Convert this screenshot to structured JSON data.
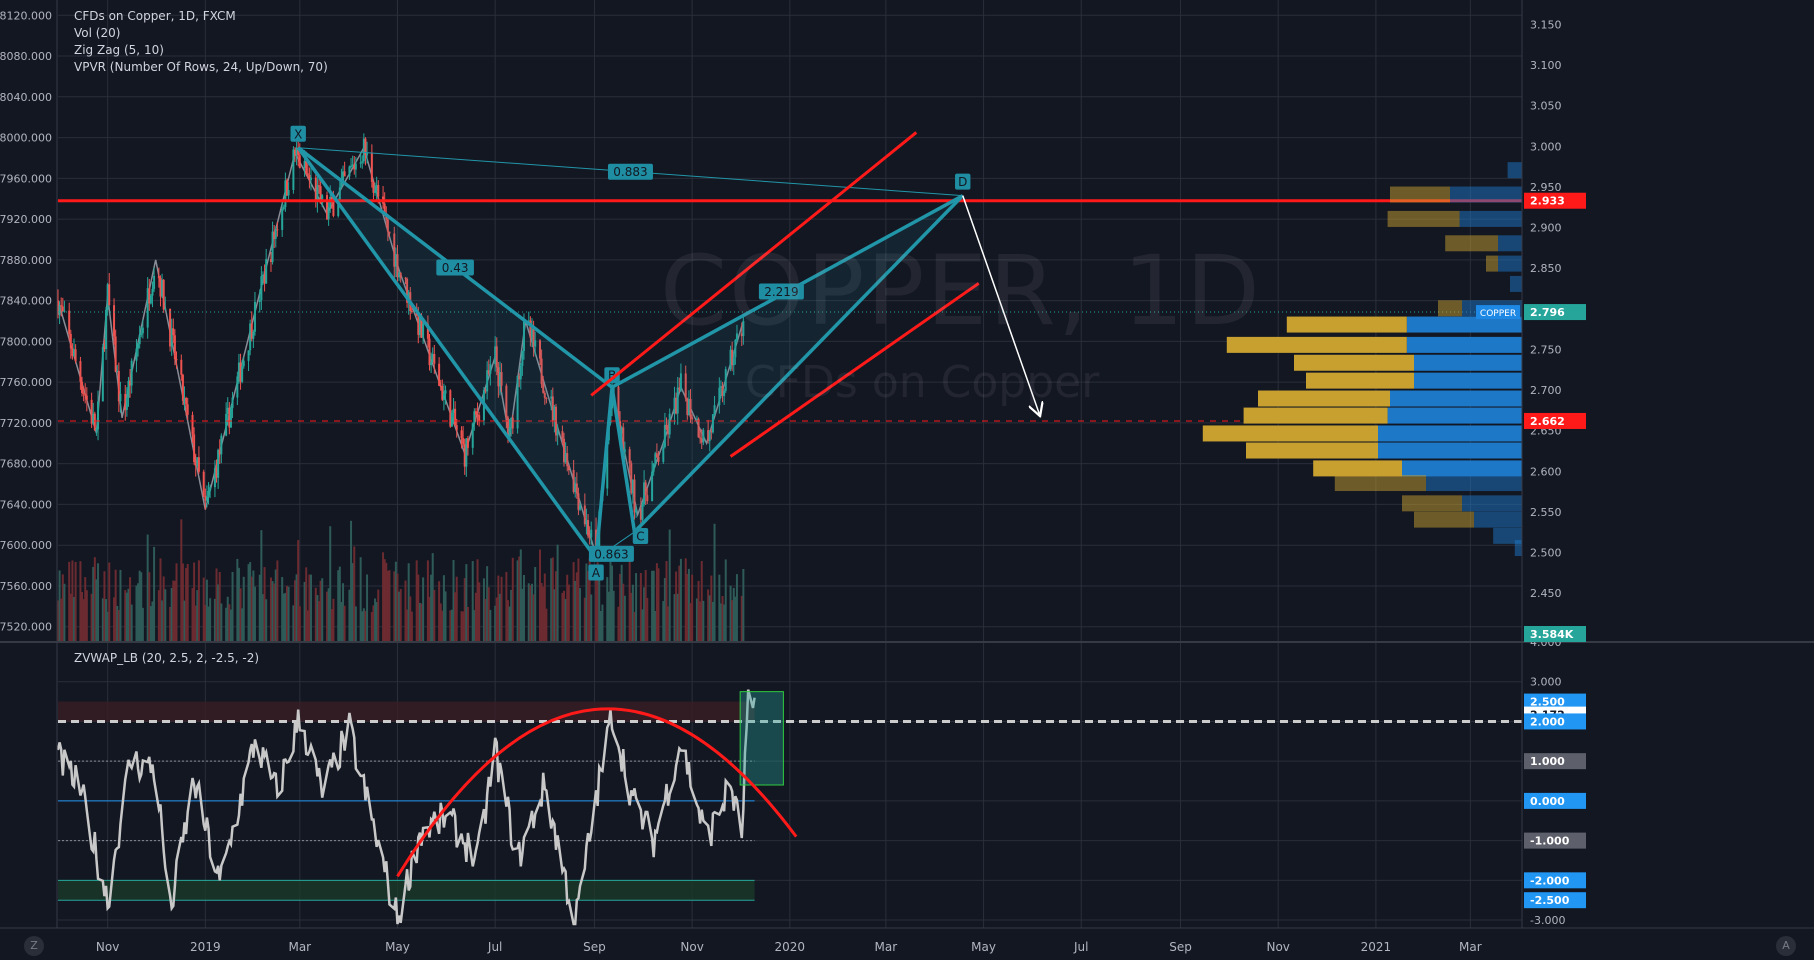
{
  "legend": {
    "symbol_line": "CFDs on Copper, 1D, FXCM",
    "vol": "Vol (20)",
    "zigzag": "Zig Zag (5, 10)",
    "vpvr": "VPVR (Number Of Rows, 24, Up/Down, 70)"
  },
  "watermark": {
    "title": "COPPER, 1D",
    "subtitle": "CFDs on Copper"
  },
  "oscillator": {
    "title": "ZVWAP_LB (20, 2.5, 2, -2.5, -2)"
  },
  "corner_buttons": {
    "left": "Z",
    "right": "A"
  },
  "colors": {
    "background": "#131722",
    "grid": "#2a2e39",
    "pattern": "#2196a8",
    "pattern_fill": "#1f8ea3",
    "trend": "#ff1a1a",
    "zigzag": "#8a8d96",
    "candle_up": "#26a69a",
    "candle_down": "#ef5350",
    "volume_up": "#2e5a57",
    "volume_down": "#6b2b30",
    "vpvr_up": "#c8a030",
    "vpvr_down": "#1e78c8",
    "osc_line": "#c8c8c8",
    "arrow": "#ffffff"
  },
  "chart_data": [
    {
      "type": "candlestick",
      "title": "CFDs on Copper, 1D, FXCM",
      "x_ticks": [
        "Nov",
        "2019",
        "Mar",
        "May",
        "Jul",
        "Sep",
        "Nov",
        "2020",
        "Mar",
        "May",
        "Jul",
        "Sep",
        "Nov",
        "2021",
        "Mar"
      ],
      "left_axis": {
        "ticks": [
          "8120.000",
          "8080.000",
          "8040.000",
          "8000.000",
          "7960.000",
          "7920.000",
          "7880.000",
          "7840.000",
          "7800.000",
          "7760.000",
          "7720.000",
          "7680.000",
          "7640.000",
          "7600.000",
          "7560.000",
          "7520.000"
        ],
        "range": [
          7505,
          8135
        ]
      },
      "right_axis": {
        "ticks": [
          "3.150",
          "3.100",
          "3.050",
          "3.000",
          "2.950",
          "2.900",
          "2.850",
          "2.800",
          "2.750",
          "2.700",
          "2.650",
          "2.600",
          "2.550",
          "2.500",
          "2.450",
          "2.400"
        ],
        "range": [
          2.39,
          3.18
        ]
      },
      "price_labels": [
        {
          "value": 2.933,
          "text": "2.933",
          "color": "#ff1a1a"
        },
        {
          "value": 2.796,
          "text": "2.796",
          "color": "#26a69a"
        },
        {
          "value": 2.662,
          "text": "2.662",
          "color": "#ff1a1a"
        }
      ],
      "volume_label": "3.584K",
      "symbol_tag": "COPPER",
      "horizontal_lines": [
        {
          "price": 2.933,
          "style": "solid",
          "color": "#ff1a1a"
        },
        {
          "price": 2.796,
          "style": "dotted",
          "color": "#26a69a"
        },
        {
          "price": 2.662,
          "style": "dashed",
          "color": "#ff1a1a"
        }
      ],
      "zigzag": [
        {
          "date": "2018-10-01",
          "price": 7840
        },
        {
          "date": "2018-10-25",
          "price": 7710
        },
        {
          "date": "2018-11-01",
          "price": 7845
        },
        {
          "date": "2018-11-10",
          "price": 7725
        },
        {
          "date": "2018-12-01",
          "price": 7880
        },
        {
          "date": "2019-01-01",
          "price": 7635
        },
        {
          "date": "2019-02-26",
          "price": 7985
        },
        {
          "date": "2019-03-18",
          "price": 7925
        },
        {
          "date": "2019-04-10",
          "price": 7990
        },
        {
          "date": "2019-05-02",
          "price": 7870
        },
        {
          "date": "2019-06-12",
          "price": 7690
        },
        {
          "date": "2019-07-01",
          "price": 7785
        },
        {
          "date": "2019-07-10",
          "price": 7705
        },
        {
          "date": "2019-07-20",
          "price": 7820
        },
        {
          "date": "2019-09-02",
          "price": 7590
        },
        {
          "date": "2019-09-12",
          "price": 7750
        },
        {
          "date": "2019-09-28",
          "price": 7630
        },
        {
          "date": "2019-10-15",
          "price": 7705
        },
        {
          "date": "2019-10-25",
          "price": 7755
        },
        {
          "date": "2019-11-10",
          "price": 7700
        },
        {
          "date": "2019-12-03",
          "price": 7820
        }
      ],
      "pattern_points": [
        {
          "label": "X",
          "date": "2019-02-28",
          "price": 7990
        },
        {
          "label": "A",
          "date": "2019-09-02",
          "price": 7587
        },
        {
          "label": "B",
          "date": "2019-09-12",
          "price": 7755
        },
        {
          "label": "C",
          "date": "2019-09-26",
          "price": 7613
        },
        {
          "label": "D",
          "date": "2020-04-18",
          "price": 7943
        }
      ],
      "pattern_ratios": [
        {
          "text": "0.883",
          "between": "X-D"
        },
        {
          "text": "0.43",
          "between": "X-B"
        },
        {
          "text": "2.219",
          "between": "B-D"
        },
        {
          "text": "0.863",
          "between": "A-C"
        }
      ],
      "trend_lines": [
        {
          "from": {
            "date": "2019-08-30",
            "price": 7747
          },
          "to": {
            "date": "2020-03-20",
            "price": 8005
          }
        },
        {
          "from": {
            "date": "2019-11-25",
            "price": 7687
          },
          "to": {
            "date": "2020-04-28",
            "price": 7857
          }
        }
      ],
      "projection_arrow": {
        "from": {
          "date": "2020-04-18",
          "price": 7943
        },
        "to": {
          "date": "2020-06-05",
          "price": 7728
        }
      },
      "vpvr": [
        {
          "price_center": 2.97,
          "up": 0.0,
          "down": 0.06,
          "alpha": 0.5
        },
        {
          "price_center": 2.94,
          "up": 0.25,
          "down": 0.3,
          "alpha": 0.5
        },
        {
          "price_center": 2.91,
          "up": 0.3,
          "down": 0.26,
          "alpha": 0.5
        },
        {
          "price_center": 2.88,
          "up": 0.22,
          "down": 0.1,
          "alpha": 0.5
        },
        {
          "price_center": 2.855,
          "up": 0.05,
          "down": 0.1,
          "alpha": 0.5
        },
        {
          "price_center": 2.83,
          "up": 0.0,
          "down": 0.05,
          "alpha": 0.5
        },
        {
          "price_center": 2.8,
          "up": 0.1,
          "down": 0.25,
          "alpha": 0.5
        },
        {
          "price_center": 2.78,
          "up": 0.5,
          "down": 0.48,
          "alpha": 1
        },
        {
          "price_center": 2.755,
          "up": 0.75,
          "down": 0.48,
          "alpha": 1
        },
        {
          "price_center": 2.733,
          "up": 0.5,
          "down": 0.45,
          "alpha": 1
        },
        {
          "price_center": 2.711,
          "up": 0.45,
          "down": 0.45,
          "alpha": 1
        },
        {
          "price_center": 2.689,
          "up": 0.55,
          "down": 0.55,
          "alpha": 1
        },
        {
          "price_center": 2.668,
          "up": 0.6,
          "down": 0.56,
          "alpha": 1
        },
        {
          "price_center": 2.646,
          "up": 0.73,
          "down": 0.6,
          "alpha": 1
        },
        {
          "price_center": 2.625,
          "up": 0.55,
          "down": 0.6,
          "alpha": 1
        },
        {
          "price_center": 2.603,
          "up": 0.37,
          "down": 0.5,
          "alpha": 1
        },
        {
          "price_center": 2.585,
          "up": 0.38,
          "down": 0.4,
          "alpha": 0.5
        },
        {
          "price_center": 2.56,
          "up": 0.25,
          "down": 0.25,
          "alpha": 0.5
        },
        {
          "price_center": 2.54,
          "up": 0.25,
          "down": 0.2,
          "alpha": 0.5
        },
        {
          "price_center": 2.52,
          "up": 0.0,
          "down": 0.12,
          "alpha": 0.5
        },
        {
          "price_center": 2.505,
          "up": 0.0,
          "down": 0.03,
          "alpha": 0.5
        }
      ]
    },
    {
      "type": "line",
      "title": "ZVWAP_LB (20, 2.5, 2, -2.5, -2)",
      "y_ticks": [
        "4.000",
        "3.000",
        "2.000",
        "1.000",
        "0.000",
        "-1.000",
        "-2.000",
        "-3.000"
      ],
      "ylim": [
        -3.2,
        4.0
      ],
      "levels": [
        {
          "value": 2.5,
          "text": "2.500",
          "bg": "#2196f3"
        },
        {
          "value": 2.172,
          "text": "2.172",
          "bg": "#ffffff"
        },
        {
          "value": 2.0,
          "text": "2.000",
          "bg": "#2196f3"
        },
        {
          "value": 1.0,
          "text": "1.000",
          "bg": "#5d606b"
        },
        {
          "value": 0.0,
          "text": "0.000",
          "bg": "#2196f3"
        },
        {
          "value": -1.0,
          "text": "-1.000",
          "bg": "#5d606b"
        },
        {
          "value": -2.0,
          "text": "-2.000",
          "bg": "#2196f3"
        },
        {
          "value": -2.5,
          "text": "-2.500",
          "bg": "#2196f3"
        }
      ],
      "series_anchors": [
        {
          "date": "2018-10-01",
          "value": 1.1
        },
        {
          "date": "2018-10-15",
          "value": 0.3
        },
        {
          "date": "2018-11-01",
          "value": -2.5
        },
        {
          "date": "2018-11-15",
          "value": 1.0
        },
        {
          "date": "2018-12-01",
          "value": 0.8
        },
        {
          "date": "2018-12-10",
          "value": -2.8
        },
        {
          "date": "2018-12-25",
          "value": 0.5
        },
        {
          "date": "2019-01-10",
          "value": -2.1
        },
        {
          "date": "2019-02-01",
          "value": 1.5
        },
        {
          "date": "2019-02-15",
          "value": 0.2
        },
        {
          "date": "2019-03-01",
          "value": 2.1
        },
        {
          "date": "2019-03-15",
          "value": 0.2
        },
        {
          "date": "2019-04-01",
          "value": 1.8
        },
        {
          "date": "2019-04-15",
          "value": -0.5
        },
        {
          "date": "2019-05-01",
          "value": -3.0
        },
        {
          "date": "2019-05-15",
          "value": -0.8
        },
        {
          "date": "2019-06-01",
          "value": -0.4
        },
        {
          "date": "2019-06-20",
          "value": -1.5
        },
        {
          "date": "2019-07-01",
          "value": 1.3
        },
        {
          "date": "2019-07-15",
          "value": -1.5
        },
        {
          "date": "2019-08-01",
          "value": 0.4
        },
        {
          "date": "2019-08-20",
          "value": -3.1
        },
        {
          "date": "2019-09-01",
          "value": -0.2
        },
        {
          "date": "2019-09-12",
          "value": 2.2
        },
        {
          "date": "2019-09-25",
          "value": 0.0
        },
        {
          "date": "2019-10-08",
          "value": -1.0
        },
        {
          "date": "2019-10-25",
          "value": 1.5
        },
        {
          "date": "2019-11-10",
          "value": -1.0
        },
        {
          "date": "2019-11-25",
          "value": 0.4
        },
        {
          "date": "2019-12-02",
          "value": -0.9
        },
        {
          "date": "2019-12-06",
          "value": 2.7
        },
        {
          "date": "2019-12-10",
          "value": 2.17
        }
      ],
      "highlight_box": {
        "from_date": "2019-12-01",
        "to_date": "2019-12-28",
        "from_value": 0.4,
        "to_value": 2.75,
        "color": "#26a69a"
      },
      "arc": {
        "color": "#ff1a1a",
        "points": [
          {
            "date": "2019-05-01",
            "value": -1.9
          },
          {
            "date": "2019-09-01",
            "value": 2.3
          },
          {
            "date": "2020-01-05",
            "value": -0.9
          }
        ]
      }
    }
  ]
}
